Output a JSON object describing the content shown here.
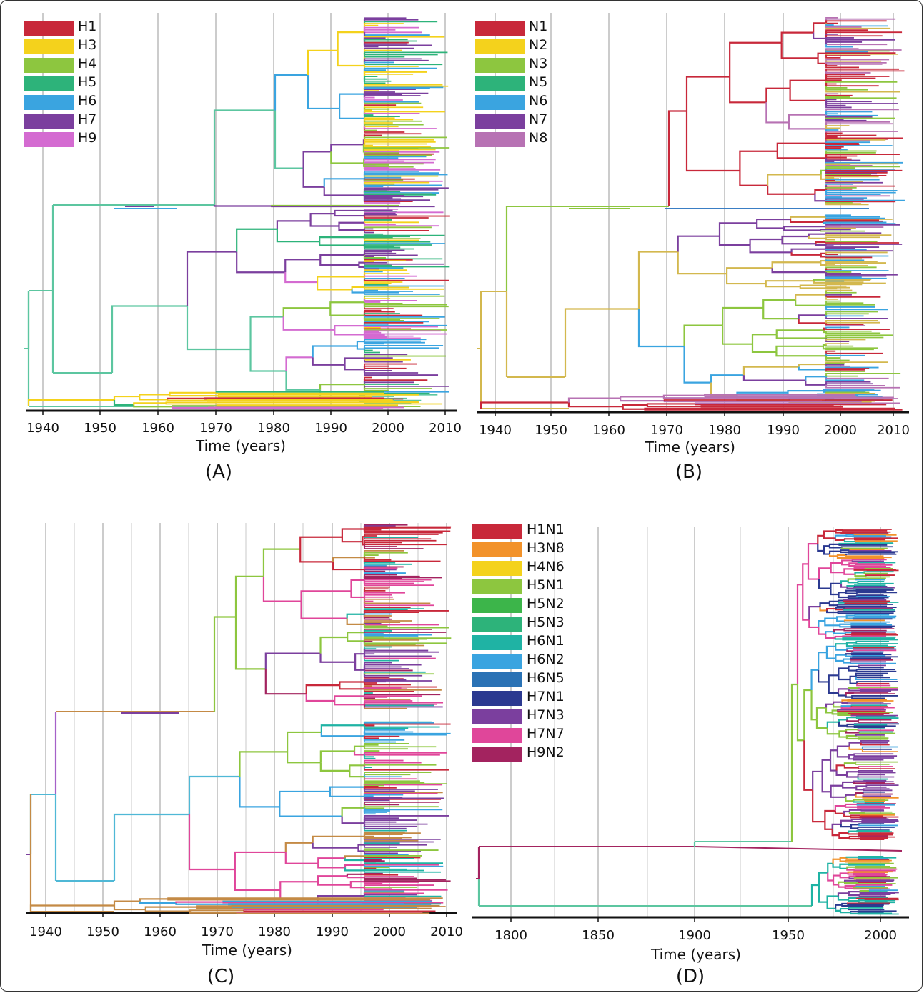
{
  "figure": {
    "panels": [
      {
        "id": "A",
        "caption": "(A)",
        "xlabel": "Time (years)",
        "ticks": [
          "1940",
          "1950",
          "1960",
          "1970",
          "1980",
          "1990",
          "2000",
          "2010"
        ],
        "legend": [
          {
            "label": "H1",
            "color": "#c8283a"
          },
          {
            "label": "H3",
            "color": "#f4d21c"
          },
          {
            "label": "H4",
            "color": "#8dc63f"
          },
          {
            "label": "H5",
            "color": "#2db37a"
          },
          {
            "label": "H6",
            "color": "#3aa4e0"
          },
          {
            "label": "H7",
            "color": "#7b3f9e"
          },
          {
            "label": "H9",
            "color": "#d46bd1"
          }
        ]
      },
      {
        "id": "B",
        "caption": "(B)",
        "xlabel": "Time (years)",
        "ticks": [
          "1940",
          "1950",
          "1960",
          "1970",
          "1980",
          "1990",
          "2000",
          "2010"
        ],
        "legend": [
          {
            "label": "N1",
            "color": "#c8283a"
          },
          {
            "label": "N2",
            "color": "#f4d21c"
          },
          {
            "label": "N3",
            "color": "#8dc63f"
          },
          {
            "label": "N5",
            "color": "#2db37a"
          },
          {
            "label": "N6",
            "color": "#3aa4e0"
          },
          {
            "label": "N7",
            "color": "#7b3f9e"
          },
          {
            "label": "N8",
            "color": "#b772b3"
          }
        ]
      },
      {
        "id": "C",
        "caption": "(C)",
        "xlabel": "Time (years)",
        "ticks": [
          "1940",
          "1950",
          "1960",
          "1970",
          "1980",
          "1990",
          "2000",
          "2010"
        ],
        "legend": []
      },
      {
        "id": "D",
        "caption": "(D)",
        "xlabel": "Time (years)",
        "ticks": [
          "1800",
          "1850",
          "1900",
          "1950",
          "2000"
        ],
        "legend": [
          {
            "label": "H1N1",
            "color": "#c8283a"
          },
          {
            "label": "H3N8",
            "color": "#f2922a"
          },
          {
            "label": "H4N6",
            "color": "#f4d21c"
          },
          {
            "label": "H5N1",
            "color": "#8dc63f"
          },
          {
            "label": "H5N2",
            "color": "#3cb54a"
          },
          {
            "label": "H5N3",
            "color": "#2db37a"
          },
          {
            "label": "H6N1",
            "color": "#1fb3a4"
          },
          {
            "label": "H6N2",
            "color": "#3aa4e0"
          },
          {
            "label": "H6N5",
            "color": "#2a72b5"
          },
          {
            "label": "H7N1",
            "color": "#2b3990"
          },
          {
            "label": "H7N3",
            "color": "#7b3f9e"
          },
          {
            "label": "H7N7",
            "color": "#e0469a"
          },
          {
            "label": "H9N2",
            "color": "#a3235f"
          }
        ]
      }
    ]
  }
}
